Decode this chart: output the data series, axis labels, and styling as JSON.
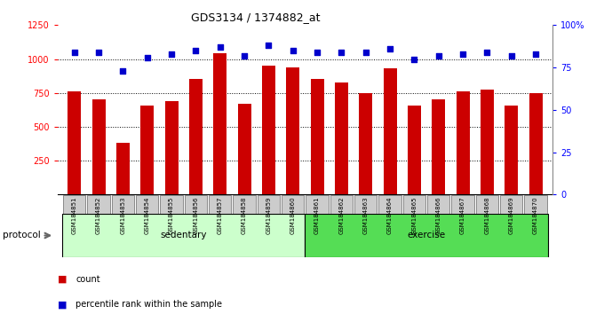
{
  "title": "GDS3134 / 1374882_at",
  "categories": [
    "GSM184851",
    "GSM184852",
    "GSM184853",
    "GSM184854",
    "GSM184855",
    "GSM184856",
    "GSM184857",
    "GSM184858",
    "GSM184859",
    "GSM184860",
    "GSM184861",
    "GSM184862",
    "GSM184863",
    "GSM184864",
    "GSM184865",
    "GSM184866",
    "GSM184867",
    "GSM184868",
    "GSM184869",
    "GSM184870"
  ],
  "counts": [
    760,
    700,
    380,
    660,
    690,
    855,
    1045,
    670,
    950,
    940,
    855,
    830,
    750,
    930,
    655,
    700,
    760,
    775,
    660,
    750
  ],
  "percentiles": [
    84,
    84,
    73,
    81,
    83,
    85,
    87,
    82,
    88,
    85,
    84,
    84,
    84,
    86,
    80,
    82,
    83,
    84,
    82,
    83
  ],
  "group_sedentary": [
    0,
    9
  ],
  "group_exercise": [
    10,
    19
  ],
  "bar_color": "#cc0000",
  "dot_color": "#0000cc",
  "ylim_left": [
    0,
    1250
  ],
  "ylim_right": [
    0,
    100
  ],
  "yticks_left": [
    250,
    500,
    750,
    1000,
    1250
  ],
  "yticks_right": [
    0,
    25,
    50,
    75,
    100
  ],
  "bg_color": "#ffffff",
  "xtick_box_color": "#cccccc",
  "sedentary_color": "#ccffcc",
  "exercise_color": "#55dd55",
  "protocol_label": "protocol",
  "legend_count": "count",
  "legend_percentile": "percentile rank within the sample",
  "title_fontsize": 9,
  "tick_fontsize": 7,
  "label_fontsize": 7
}
